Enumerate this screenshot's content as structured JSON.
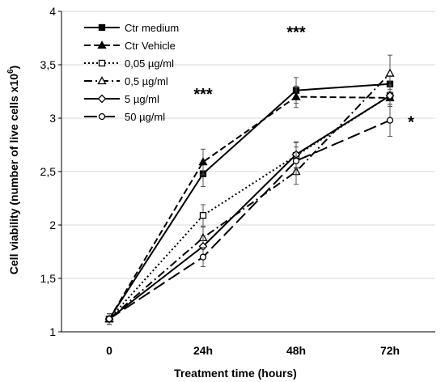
{
  "chart_data": {
    "type": "line",
    "xlabel": "Treatment time (hours)",
    "ylabel": "Cell viability (number of live cells x10",
    "ylabel_sup": "6",
    "ylabel_close": ")",
    "categories": [
      "0",
      "24h",
      "48h",
      "72h"
    ],
    "ylim": [
      1,
      4
    ],
    "yticks": [
      "1",
      "1,5",
      "2",
      "2,5",
      "3",
      "3,5",
      "4"
    ],
    "grid": true,
    "legend_position": "top-left",
    "series": [
      {
        "name": "Ctr medium",
        "values": [
          1.12,
          2.48,
          3.26,
          3.32
        ],
        "errors": [
          0.05,
          0.12,
          0.12,
          0.1
        ],
        "marker": "square-filled",
        "dash": "solid"
      },
      {
        "name": "Ctr Vehicle",
        "values": [
          1.12,
          2.59,
          3.2,
          3.19
        ],
        "errors": [
          0.05,
          0.12,
          0.1,
          0.08
        ],
        "marker": "triangle-filled",
        "dash": "dashed"
      },
      {
        "name": "0,05 µg/ml",
        "values": [
          1.12,
          2.09,
          2.65,
          3.21
        ],
        "errors": [
          0.05,
          0.1,
          0.12,
          0.08
        ],
        "marker": "square-open",
        "dash": "dotted"
      },
      {
        "name": "0,5 µg/ml",
        "values": [
          1.12,
          1.88,
          2.5,
          3.42
        ],
        "errors": [
          0.05,
          0.1,
          0.12,
          0.17
        ],
        "marker": "triangle-open",
        "dash": "dashdot"
      },
      {
        "name": "5 µg/ml",
        "values": [
          1.12,
          1.8,
          2.66,
          3.21
        ],
        "errors": [
          0.05,
          0.1,
          0.12,
          0.1
        ],
        "marker": "diamond-open",
        "dash": "solid"
      },
      {
        "name": "50 µg/ml",
        "values": [
          1.12,
          1.7,
          2.6,
          2.98
        ],
        "errors": [
          0.05,
          0.09,
          0.13,
          0.15
        ],
        "marker": "circle-open",
        "dash": "longdash"
      }
    ],
    "annotations": [
      {
        "text": "***",
        "x": "24h",
        "y": 3.28
      },
      {
        "text": "***",
        "x": "48h",
        "y": 3.86
      },
      {
        "text": "*",
        "x": "72h",
        "y": 3.02
      }
    ]
  }
}
